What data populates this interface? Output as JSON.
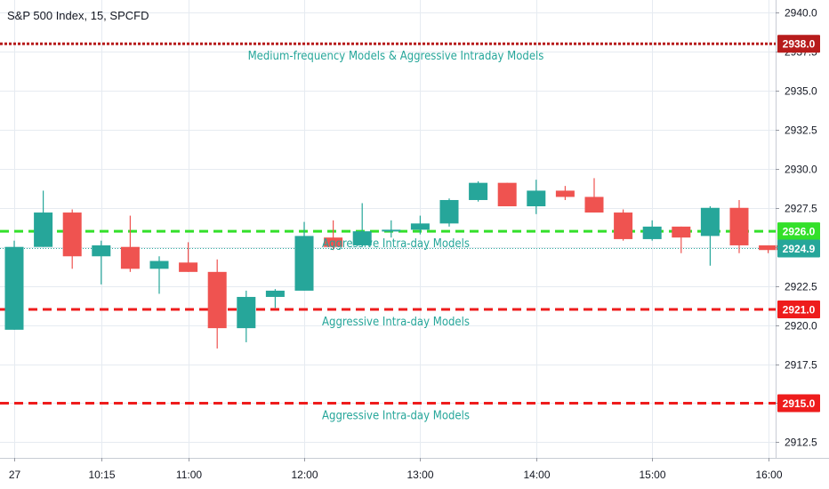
{
  "chart_data": {
    "type": "candlestick",
    "title": "S&P 500 Index, 15, SPCFD",
    "ylim": [
      2911.5,
      2940.8
    ],
    "y_ticks": [
      "2940.0",
      "2937.5",
      "2935.0",
      "2932.5",
      "2930.0",
      "2927.5",
      "2925.0",
      "2922.5",
      "2920.0",
      "2917.5",
      "2915.0",
      "2912.5"
    ],
    "x_labels": [
      {
        "label": "27",
        "index": 0
      },
      {
        "label": "10:15",
        "index": 3
      },
      {
        "label": "11:00",
        "index": 6
      },
      {
        "label": "12:00",
        "index": 10
      },
      {
        "label": "13:00",
        "index": 14
      },
      {
        "label": "14:00",
        "index": 18
      },
      {
        "label": "15:00",
        "index": 22
      },
      {
        "label": "16:00",
        "index": 26
      }
    ],
    "candles": [
      {
        "o": 2919.7,
        "h": 2925.4,
        "l": 2919.7,
        "c": 2925.0
      },
      {
        "o": 2925.0,
        "h": 2928.6,
        "l": 2925.0,
        "c": 2927.2
      },
      {
        "o": 2927.2,
        "h": 2927.4,
        "l": 2923.6,
        "c": 2924.4
      },
      {
        "o": 2924.4,
        "h": 2925.4,
        "l": 2922.6,
        "c": 2925.1
      },
      {
        "o": 2925.0,
        "h": 2927.0,
        "l": 2923.4,
        "c": 2923.6
      },
      {
        "o": 2923.6,
        "h": 2924.4,
        "l": 2922.0,
        "c": 2924.1
      },
      {
        "o": 2924.0,
        "h": 2925.3,
        "l": 2923.4,
        "c": 2923.4
      },
      {
        "o": 2923.4,
        "h": 2924.2,
        "l": 2918.5,
        "c": 2919.8
      },
      {
        "o": 2919.8,
        "h": 2922.2,
        "l": 2918.9,
        "c": 2921.8
      },
      {
        "o": 2921.8,
        "h": 2922.3,
        "l": 2921.1,
        "c": 2922.2
      },
      {
        "o": 2922.2,
        "h": 2926.6,
        "l": 2922.2,
        "c": 2925.7
      },
      {
        "o": 2925.6,
        "h": 2926.7,
        "l": 2924.8,
        "c": 2925.0
      },
      {
        "o": 2925.1,
        "h": 2927.8,
        "l": 2925.0,
        "c": 2926.0
      },
      {
        "o": 2926.0,
        "h": 2926.7,
        "l": 2925.6,
        "c": 2926.1
      },
      {
        "o": 2926.1,
        "h": 2927.0,
        "l": 2925.8,
        "c": 2926.5
      },
      {
        "o": 2926.5,
        "h": 2928.1,
        "l": 2926.3,
        "c": 2928.0
      },
      {
        "o": 2928.0,
        "h": 2929.2,
        "l": 2927.9,
        "c": 2929.1
      },
      {
        "o": 2929.1,
        "h": 2929.1,
        "l": 2927.6,
        "c": 2927.6
      },
      {
        "o": 2927.6,
        "h": 2929.3,
        "l": 2927.1,
        "c": 2928.6
      },
      {
        "o": 2928.6,
        "h": 2928.9,
        "l": 2928.0,
        "c": 2928.2
      },
      {
        "o": 2928.2,
        "h": 2929.4,
        "l": 2927.2,
        "c": 2927.2
      },
      {
        "o": 2927.2,
        "h": 2927.4,
        "l": 2925.4,
        "c": 2925.5
      },
      {
        "o": 2925.5,
        "h": 2926.7,
        "l": 2925.4,
        "c": 2926.3
      },
      {
        "o": 2926.3,
        "h": 2926.3,
        "l": 2924.6,
        "c": 2925.6
      },
      {
        "o": 2925.7,
        "h": 2927.6,
        "l": 2923.8,
        "c": 2927.5
      },
      {
        "o": 2927.5,
        "h": 2928.0,
        "l": 2924.6,
        "c": 2925.1
      },
      {
        "o": 2925.1,
        "h": 2925.1,
        "l": 2924.6,
        "c": 2924.8
      }
    ],
    "levels": [
      {
        "value": 2938.0,
        "label": "2938.0",
        "color": "#b71c1c",
        "style": "dotted",
        "annotation": "Medium-frequency Models & Aggressive Intraday Models"
      },
      {
        "value": 2926.0,
        "label": "2926.0",
        "color": "#33e02a",
        "style": "dashed",
        "annotation": "Aggressive Intra-day Models"
      },
      {
        "value": 2921.0,
        "label": "2921.0",
        "color": "#ee1c1c",
        "style": "dashed",
        "annotation": "Aggressive Intra-day Models"
      },
      {
        "value": 2915.0,
        "label": "2915.0",
        "color": "#ee1c1c",
        "style": "dashed",
        "annotation": "Aggressive Intra-day Models"
      }
    ],
    "last_price": {
      "value": 2924.9,
      "label": "2924.9",
      "color": "#26a69a"
    },
    "colors": {
      "up": "#26a69a",
      "down": "#ef5350",
      "grid": "#e6ebf1",
      "annotation": "#26a69a"
    }
  }
}
